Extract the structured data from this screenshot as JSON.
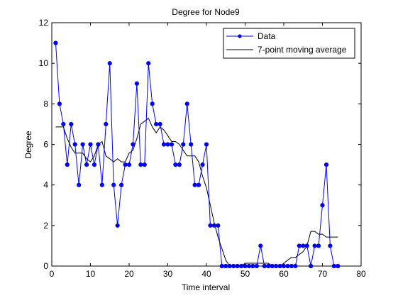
{
  "chart_data": {
    "type": "line",
    "title": "Degree for Node9",
    "xlabel": "Time interval",
    "ylabel": "Degree",
    "xlim": [
      0,
      80
    ],
    "ylim": [
      0,
      12
    ],
    "xticks": [
      0,
      10,
      20,
      30,
      40,
      50,
      60,
      70,
      80
    ],
    "yticks": [
      0,
      2,
      4,
      6,
      8,
      10,
      12
    ],
    "grid": false,
    "legend_position": "top-right",
    "series": [
      {
        "name": "Data",
        "color": "#0000ff",
        "marker": "circle",
        "x": [
          1,
          2,
          3,
          4,
          5,
          6,
          7,
          8,
          9,
          10,
          11,
          12,
          13,
          14,
          15,
          16,
          17,
          18,
          19,
          20,
          21,
          22,
          23,
          24,
          25,
          26,
          27,
          28,
          29,
          30,
          31,
          32,
          33,
          34,
          35,
          36,
          37,
          38,
          39,
          40,
          41,
          42,
          43,
          44,
          45,
          46,
          47,
          48,
          49,
          50,
          51,
          52,
          53,
          54,
          55,
          56,
          57,
          58,
          59,
          60,
          61,
          62,
          63,
          64,
          65,
          66,
          67,
          68,
          69,
          70,
          71,
          72,
          73,
          74
        ],
        "values": [
          11,
          8,
          7,
          5,
          7,
          6,
          4,
          6,
          5,
          6,
          5,
          6,
          4,
          7,
          10,
          4,
          2,
          4,
          5,
          5,
          6,
          9,
          5,
          5,
          10,
          8,
          7,
          7,
          6,
          6,
          6,
          5,
          5,
          6,
          8,
          6,
          4,
          4,
          5,
          6,
          2,
          2,
          2,
          0,
          0,
          0,
          0,
          0,
          0,
          0,
          0,
          0,
          0,
          1,
          0,
          0,
          0,
          0,
          0,
          0,
          0,
          0,
          0,
          1,
          1,
          1,
          0,
          1,
          1,
          3,
          5,
          1,
          0,
          0
        ]
      },
      {
        "name": "7-point moving average",
        "color": "#000000",
        "marker": "none",
        "x": [
          1,
          2,
          3,
          4,
          5,
          6,
          7,
          8,
          9,
          10,
          11,
          12,
          13,
          14,
          15,
          16,
          17,
          18,
          19,
          20,
          21,
          22,
          23,
          24,
          25,
          26,
          27,
          28,
          29,
          30,
          31,
          32,
          33,
          34,
          35,
          36,
          37,
          38,
          39,
          40,
          41,
          42,
          43,
          44,
          45,
          46,
          47,
          48,
          49,
          50,
          51,
          52,
          53,
          54,
          55,
          56,
          57,
          58,
          59,
          60,
          61,
          62,
          63,
          64,
          65,
          66,
          67,
          68,
          69,
          70,
          71,
          72,
          73,
          74
        ],
        "values": [
          6.86,
          6.86,
          6.86,
          6.29,
          5.86,
          5.57,
          5.57,
          5.57,
          5.29,
          5.14,
          5.43,
          6.0,
          6.14,
          5.43,
          5.29,
          5.14,
          5.29,
          5.14,
          5.14,
          5.57,
          5.71,
          6.29,
          7.0,
          7.14,
          7.29,
          6.86,
          6.57,
          6.86,
          6.71,
          6.43,
          6.14,
          6.14,
          6.0,
          5.71,
          5.43,
          5.43,
          5.43,
          5.14,
          4.43,
          3.86,
          3.0,
          2.14,
          1.43,
          0.86,
          0.29,
          0.0,
          0.0,
          0.0,
          0.0,
          0.14,
          0.14,
          0.14,
          0.14,
          0.14,
          0.14,
          0.14,
          0.0,
          0.0,
          0.0,
          0.14,
          0.29,
          0.43,
          0.43,
          0.57,
          0.71,
          1.0,
          1.71,
          1.71,
          1.57,
          1.57,
          1.43,
          1.43,
          1.43,
          1.43
        ]
      }
    ]
  }
}
